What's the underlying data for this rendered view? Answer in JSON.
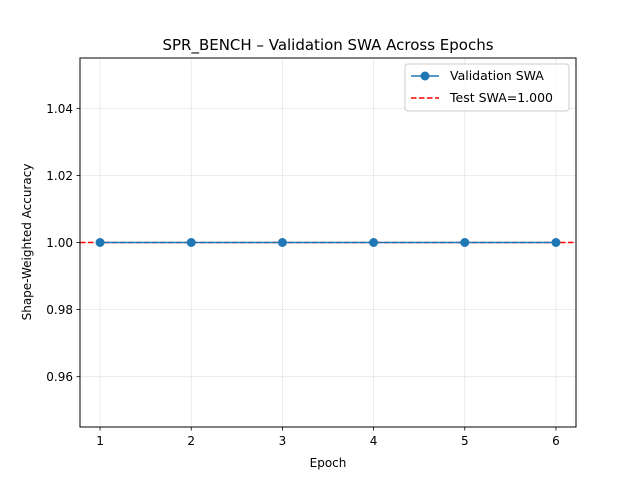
{
  "chart_data": {
    "type": "line",
    "title": "SPR_BENCH – Validation SWA Across Epochs",
    "xlabel": "Epoch",
    "ylabel": "Shape-Weighted Accuracy",
    "xlim": [
      0.78,
      6.22
    ],
    "ylim": [
      0.945,
      1.055
    ],
    "xticks": [
      1,
      2,
      3,
      4,
      5,
      6
    ],
    "yticks": [
      0.96,
      0.98,
      1.0,
      1.02,
      1.04
    ],
    "ytick_labels": [
      "0.96",
      "0.98",
      "1.00",
      "1.02",
      "1.04"
    ],
    "grid": true,
    "legend_position": "top-right",
    "series": [
      {
        "name": "Validation SWA",
        "x": [
          1,
          2,
          3,
          4,
          5,
          6
        ],
        "values": [
          1.0,
          1.0,
          1.0,
          1.0,
          1.0,
          1.0
        ],
        "color": "#1f77b4",
        "style": "solid-marker"
      }
    ],
    "reference_lines": [
      {
        "name": "Test SWA=1.000",
        "y": 1.0,
        "color": "#ff0000",
        "style": "dashed"
      }
    ]
  }
}
